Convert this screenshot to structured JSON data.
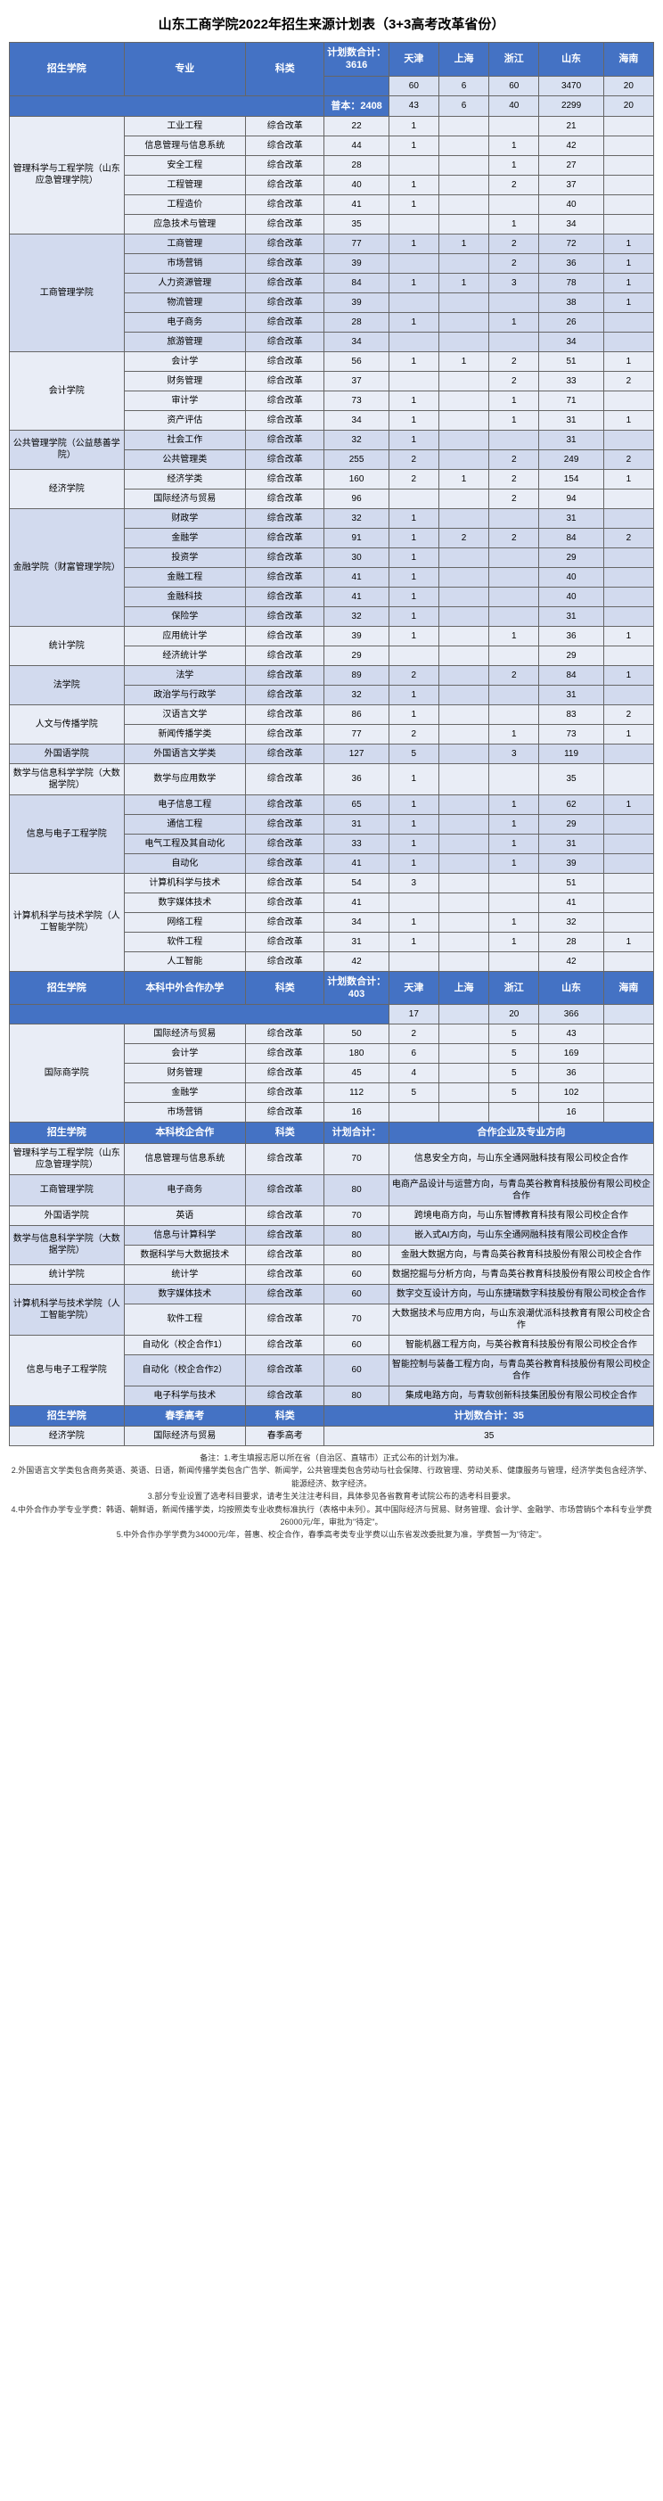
{
  "title": "山东工商学院2022年招生来源计划表（3+3高考改革省份）",
  "header1": {
    "college": "招生学院",
    "major": "专业",
    "category": "科类",
    "totalLabel": "计划数合计：",
    "totalNum": "3616",
    "benLabel": "普本：",
    "benNum": "2408",
    "cols": [
      "天津",
      "上海",
      "浙江",
      "山东",
      "海南"
    ],
    "row1": [
      "60",
      "6",
      "60",
      "3470",
      "20"
    ],
    "row2": [
      "43",
      "6",
      "40",
      "2299",
      "20"
    ]
  },
  "section1": [
    {
      "college": "管理科学与工程学院（山东应急管理学院）",
      "rows": [
        {
          "m": "工业工程",
          "c": "综合改革",
          "v": [
            "22",
            "1",
            "",
            "",
            "21",
            ""
          ]
        },
        {
          "m": "信息管理与信息系统",
          "c": "综合改革",
          "v": [
            "44",
            "1",
            "",
            "1",
            "42",
            ""
          ]
        },
        {
          "m": "安全工程",
          "c": "综合改革",
          "v": [
            "28",
            "",
            "",
            "1",
            "27",
            ""
          ]
        },
        {
          "m": "工程管理",
          "c": "综合改革",
          "v": [
            "40",
            "1",
            "",
            "2",
            "37",
            ""
          ]
        },
        {
          "m": "工程造价",
          "c": "综合改革",
          "v": [
            "41",
            "1",
            "",
            "",
            "40",
            ""
          ]
        },
        {
          "m": "应急技术与管理",
          "c": "综合改革",
          "v": [
            "35",
            "",
            "",
            "1",
            "34",
            ""
          ]
        }
      ]
    },
    {
      "college": "工商管理学院",
      "rows": [
        {
          "m": "工商管理",
          "c": "综合改革",
          "v": [
            "77",
            "1",
            "1",
            "2",
            "72",
            "1"
          ]
        },
        {
          "m": "市场营销",
          "c": "综合改革",
          "v": [
            "39",
            "",
            "",
            "2",
            "36",
            "1"
          ]
        },
        {
          "m": "人力资源管理",
          "c": "综合改革",
          "v": [
            "84",
            "1",
            "1",
            "3",
            "78",
            "1"
          ]
        },
        {
          "m": "物流管理",
          "c": "综合改革",
          "v": [
            "39",
            "",
            "",
            "",
            "38",
            "1"
          ]
        },
        {
          "m": "电子商务",
          "c": "综合改革",
          "v": [
            "28",
            "1",
            "",
            "1",
            "26",
            ""
          ]
        },
        {
          "m": "旅游管理",
          "c": "综合改革",
          "v": [
            "34",
            "",
            "",
            "",
            "34",
            ""
          ]
        }
      ]
    },
    {
      "college": "会计学院",
      "rows": [
        {
          "m": "会计学",
          "c": "综合改革",
          "v": [
            "56",
            "1",
            "1",
            "2",
            "51",
            "1"
          ]
        },
        {
          "m": "财务管理",
          "c": "综合改革",
          "v": [
            "37",
            "",
            "",
            "2",
            "33",
            "2"
          ]
        },
        {
          "m": "审计学",
          "c": "综合改革",
          "v": [
            "73",
            "1",
            "",
            "1",
            "71",
            ""
          ]
        },
        {
          "m": "资产评估",
          "c": "综合改革",
          "v": [
            "34",
            "1",
            "",
            "1",
            "31",
            "1"
          ]
        }
      ]
    },
    {
      "college": "公共管理学院（公益慈善学院）",
      "rows": [
        {
          "m": "社会工作",
          "c": "综合改革",
          "v": [
            "32",
            "1",
            "",
            "",
            "31",
            ""
          ]
        },
        {
          "m": "公共管理类",
          "c": "综合改革",
          "v": [
            "255",
            "2",
            "",
            "2",
            "249",
            "2"
          ]
        }
      ]
    },
    {
      "college": "经济学院",
      "rows": [
        {
          "m": "经济学类",
          "c": "综合改革",
          "v": [
            "160",
            "2",
            "1",
            "2",
            "154",
            "1"
          ]
        },
        {
          "m": "国际经济与贸易",
          "c": "综合改革",
          "v": [
            "96",
            "",
            "",
            "2",
            "94",
            ""
          ]
        }
      ]
    },
    {
      "college": "金融学院（财富管理学院）",
      "rows": [
        {
          "m": "财政学",
          "c": "综合改革",
          "v": [
            "32",
            "1",
            "",
            "",
            "31",
            ""
          ]
        },
        {
          "m": "金融学",
          "c": "综合改革",
          "v": [
            "91",
            "1",
            "2",
            "2",
            "84",
            "2"
          ]
        },
        {
          "m": "投资学",
          "c": "综合改革",
          "v": [
            "30",
            "1",
            "",
            "",
            "29",
            ""
          ]
        },
        {
          "m": "金融工程",
          "c": "综合改革",
          "v": [
            "41",
            "1",
            "",
            "",
            "40",
            ""
          ]
        },
        {
          "m": "金融科技",
          "c": "综合改革",
          "v": [
            "41",
            "1",
            "",
            "",
            "40",
            ""
          ]
        },
        {
          "m": "保险学",
          "c": "综合改革",
          "v": [
            "32",
            "1",
            "",
            "",
            "31",
            ""
          ]
        }
      ]
    },
    {
      "college": "统计学院",
      "rows": [
        {
          "m": "应用统计学",
          "c": "综合改革",
          "v": [
            "39",
            "1",
            "",
            "1",
            "36",
            "1"
          ]
        },
        {
          "m": "经济统计学",
          "c": "综合改革",
          "v": [
            "29",
            "",
            "",
            "",
            "29",
            ""
          ]
        }
      ]
    },
    {
      "college": "法学院",
      "rows": [
        {
          "m": "法学",
          "c": "综合改革",
          "v": [
            "89",
            "2",
            "",
            "2",
            "84",
            "1"
          ]
        },
        {
          "m": "政治学与行政学",
          "c": "综合改革",
          "v": [
            "32",
            "1",
            "",
            "",
            "31",
            ""
          ]
        }
      ]
    },
    {
      "college": "人文与传播学院",
      "rows": [
        {
          "m": "汉语言文学",
          "c": "综合改革",
          "v": [
            "86",
            "1",
            "",
            "",
            "83",
            "2"
          ]
        },
        {
          "m": "新闻传播学类",
          "c": "综合改革",
          "v": [
            "77",
            "2",
            "",
            "1",
            "73",
            "1"
          ]
        }
      ]
    },
    {
      "college": "外国语学院",
      "rows": [
        {
          "m": "外国语言文学类",
          "c": "综合改革",
          "v": [
            "127",
            "5",
            "",
            "3",
            "119",
            ""
          ]
        }
      ]
    },
    {
      "college": "数学与信息科学学院（大数据学院）",
      "rows": [
        {
          "m": "数学与应用数学",
          "c": "综合改革",
          "v": [
            "36",
            "1",
            "",
            "",
            "35",
            ""
          ]
        }
      ]
    },
    {
      "college": "信息与电子工程学院",
      "rows": [
        {
          "m": "电子信息工程",
          "c": "综合改革",
          "v": [
            "65",
            "1",
            "",
            "1",
            "62",
            "1"
          ]
        },
        {
          "m": "通信工程",
          "c": "综合改革",
          "v": [
            "31",
            "1",
            "",
            "1",
            "29",
            ""
          ]
        },
        {
          "m": "电气工程及其自动化",
          "c": "综合改革",
          "v": [
            "33",
            "1",
            "",
            "1",
            "31",
            ""
          ]
        },
        {
          "m": "自动化",
          "c": "综合改革",
          "v": [
            "41",
            "1",
            "",
            "1",
            "39",
            ""
          ]
        }
      ]
    },
    {
      "college": "计算机科学与技术学院（人工智能学院）",
      "rows": [
        {
          "m": "计算机科学与技术",
          "c": "综合改革",
          "v": [
            "54",
            "3",
            "",
            "",
            "51",
            ""
          ]
        },
        {
          "m": "数字媒体技术",
          "c": "综合改革",
          "v": [
            "41",
            "",
            "",
            "",
            "41",
            ""
          ]
        },
        {
          "m": "网络工程",
          "c": "综合改革",
          "v": [
            "34",
            "1",
            "",
            "1",
            "32",
            ""
          ]
        },
        {
          "m": "软件工程",
          "c": "综合改革",
          "v": [
            "31",
            "1",
            "",
            "1",
            "28",
            "1"
          ]
        },
        {
          "m": "人工智能",
          "c": "综合改革",
          "v": [
            "42",
            "",
            "",
            "",
            "42",
            ""
          ]
        }
      ]
    }
  ],
  "header2": {
    "college": "招生学院",
    "major": "本科中外合作办学",
    "category": "科类",
    "totalLabel": "计划数合计：",
    "totalNum": "403",
    "cols": [
      "天津",
      "上海",
      "浙江",
      "山东",
      "海南"
    ],
    "row1": [
      "17",
      "",
      "20",
      "366",
      ""
    ]
  },
  "section2": [
    {
      "college": "国际商学院",
      "rows": [
        {
          "m": "国际经济与贸易",
          "c": "综合改革",
          "v": [
            "50",
            "2",
            "",
            "5",
            "43",
            ""
          ]
        },
        {
          "m": "会计学",
          "c": "综合改革",
          "v": [
            "180",
            "6",
            "",
            "5",
            "169",
            ""
          ]
        },
        {
          "m": "财务管理",
          "c": "综合改革",
          "v": [
            "45",
            "4",
            "",
            "5",
            "36",
            ""
          ]
        },
        {
          "m": "金融学",
          "c": "综合改革",
          "v": [
            "112",
            "5",
            "",
            "5",
            "102",
            ""
          ]
        },
        {
          "m": "市场营销",
          "c": "综合改革",
          "v": [
            "16",
            "",
            "",
            "",
            "16",
            ""
          ]
        }
      ]
    }
  ],
  "header3": {
    "college": "招生学院",
    "major": "本科校企合作",
    "category": "科类",
    "totalLabel": "计划合计：",
    "coopLabel": "合作企业及专业方向"
  },
  "section3": [
    {
      "college": "管理科学与工程学院（山东应急管理学院）",
      "m": "信息管理与信息系统",
      "c": "综合改革",
      "n": "70",
      "d": "信息安全方向，与山东全通网融科技有限公司校企合作"
    },
    {
      "college": "工商管理学院",
      "m": "电子商务",
      "c": "综合改革",
      "n": "80",
      "d": "电商产品设计与运营方向，与青岛英谷教育科技股份有限公司校企合作"
    },
    {
      "college": "外国语学院",
      "m": "英语",
      "c": "综合改革",
      "n": "70",
      "d": "跨境电商方向，与山东智博教育科技有限公司校企合作"
    },
    {
      "college": "数学与信息科学学院（大数据学院）",
      "m": "信息与计算科学",
      "c": "综合改革",
      "n": "80",
      "d": "嵌入式AI方向，与山东全通网融科技有限公司校企合作",
      "span": 2
    },
    {
      "m": "数据科学与大数据技术",
      "c": "综合改革",
      "n": "80",
      "d": "金融大数据方向，与青岛英谷教育科技股份有限公司校企合作"
    },
    {
      "college": "统计学院",
      "m": "统计学",
      "c": "综合改革",
      "n": "60",
      "d": "数据挖掘与分析方向，与青岛英谷教育科技股份有限公司校企合作"
    },
    {
      "college": "计算机科学与技术学院（人工智能学院）",
      "m": "数字媒体技术",
      "c": "综合改革",
      "n": "60",
      "d": "数字交互设计方向，与山东捷瑞数字科技股份有限公司校企合作",
      "span": 2
    },
    {
      "m": "软件工程",
      "c": "综合改革",
      "n": "70",
      "d": "大数据技术与应用方向，与山东浪潮优派科技教育有限公司校企合作"
    },
    {
      "college": "信息与电子工程学院",
      "m": "自动化（校企合作1）",
      "c": "综合改革",
      "n": "60",
      "d": "智能机器工程方向，与英谷教育科技股份有限公司校企合作",
      "span": 3
    },
    {
      "m": "自动化（校企合作2）",
      "c": "综合改革",
      "n": "60",
      "d": "智能控制与装备工程方向，与青岛英谷教育科技股份有限公司校企合作"
    },
    {
      "m": "电子科学与技术",
      "c": "综合改革",
      "n": "80",
      "d": "集成电路方向，与青软创新科技集团股份有限公司校企合作"
    }
  ],
  "header4": {
    "college": "招生学院",
    "major": "春季高考",
    "category": "科类",
    "totalLabel": "计划数合计：35"
  },
  "section4": [
    {
      "college": "经济学院",
      "m": "国际经济与贸易",
      "c": "春季高考",
      "n": "35"
    }
  ],
  "footnotes": [
    "备注：1.考生填报志愿以所在省（自治区、直辖市）正式公布的计划为准。",
    "2.外国语言文学类包含商务英语、英语、日语，新闻传播学类包含广告学、新闻学，公共管理类包含劳动与社会保障、行政管理、劳动关系、健康服务与管理，经济学类包含经济学、能源经济、数字经济。",
    "3.部分专业设置了选考科目要求，请考生关注注考科目，具体参见各省教育考试院公布的选考科目要求。",
    "4.中外合作办学专业学费：韩语、朝鲜语，新闻传播学类，均按照类专业收费标准执行（表格中未列）。其中国际经济与贸易、财务管理、会计学、金融学、市场营销5个本科专业学费26000元/年，审批为\"待定\"。",
    "5.中外合作办学学费为34000元/年，普惠、校企合作，春季高考类专业学费以山东省发改委批复为准，学费暂一为\"待定\"。"
  ]
}
